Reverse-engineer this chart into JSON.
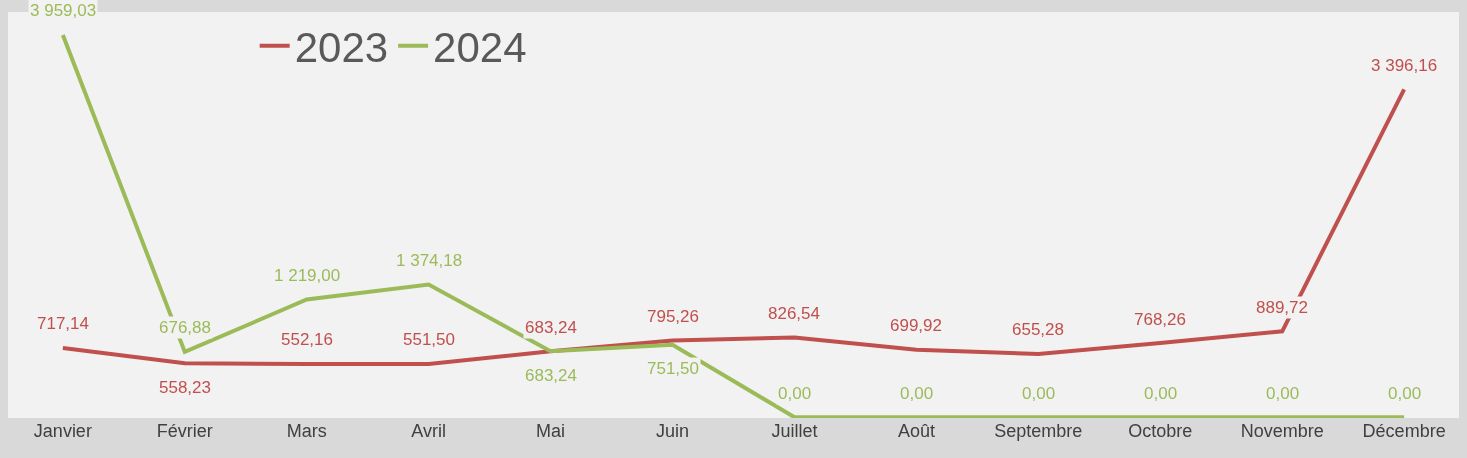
{
  "chart_data": {
    "type": "line",
    "categories": [
      "Janvier",
      "Février",
      "Mars",
      "Avril",
      "Mai",
      "Juin",
      "Juillet",
      "Août",
      "Septembre",
      "Octobre",
      "Novembre",
      "Décembre"
    ],
    "series": [
      {
        "name": "2023",
        "color": "#c0504d",
        "values": [
          717.14,
          558.23,
          552.16,
          551.5,
          683.24,
          795.26,
          826.54,
          699.92,
          655.28,
          768.26,
          889.72,
          3396.16
        ],
        "value_labels": [
          "717,14",
          "558,23",
          "552,16",
          "551,50",
          "683,24",
          "795,26",
          "826,54",
          "699,92",
          "655,28",
          "768,26",
          "889,72",
          "3 396,16"
        ]
      },
      {
        "name": "2024",
        "color": "#9bbb59",
        "values": [
          3959.03,
          676.88,
          1219.0,
          1374.18,
          683.24,
          751.5,
          0,
          0,
          0,
          0,
          0,
          0
        ],
        "value_labels": [
          "3 959,03",
          "676,88",
          "1 219,00",
          "1 374,18",
          "683,24",
          "751,50",
          "0,00",
          "0,00",
          "0,00",
          "0,00",
          "0,00",
          "0,00"
        ]
      }
    ],
    "legend": "top left",
    "grid": false,
    "marker": "none"
  }
}
